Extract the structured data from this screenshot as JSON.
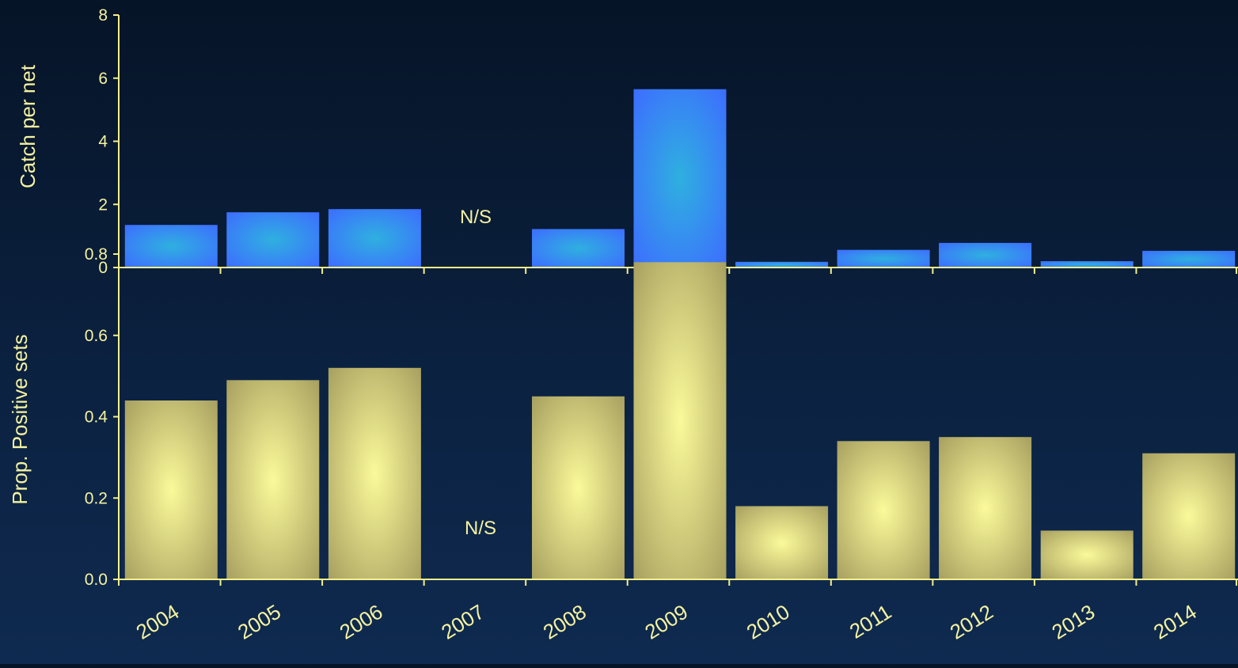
{
  "colors": {
    "axis": "#f3f08a",
    "text": "#f6f3a0",
    "blue_edge": "#3d6dff",
    "blue_center": "#2fb0e0",
    "gold_edge": "#a8a060",
    "gold_center": "#fbfa9a"
  },
  "chart_data": [
    {
      "type": "bar",
      "categories": [
        "2004",
        "2005",
        "2006",
        "2007",
        "2008",
        "2009",
        "2010",
        "2011",
        "2012",
        "2013",
        "2014"
      ],
      "values": [
        1.35,
        1.75,
        1.85,
        null,
        1.22,
        5.65,
        0.18,
        0.56,
        0.78,
        0.2,
        0.53
      ],
      "ylabel": "Catch per net",
      "ylim": [
        0,
        8
      ],
      "yticks": [
        "0",
        "2",
        "4",
        "6",
        "8"
      ],
      "annotation": "N/S",
      "grid": false
    },
    {
      "type": "bar",
      "categories": [
        "2004",
        "2005",
        "2006",
        "2007",
        "2008",
        "2009",
        "2010",
        "2011",
        "2012",
        "2013",
        "2014"
      ],
      "values": [
        0.44,
        0.49,
        0.52,
        null,
        0.45,
        0.78,
        0.18,
        0.34,
        0.35,
        0.12,
        0.31
      ],
      "ylabel": "Prop. Positive sets",
      "ylim": [
        0,
        0.8
      ],
      "yticks": [
        "0.0",
        "0.2",
        "0.4",
        "0.6",
        "0.8"
      ],
      "annotation": "N/S",
      "grid": false
    }
  ]
}
